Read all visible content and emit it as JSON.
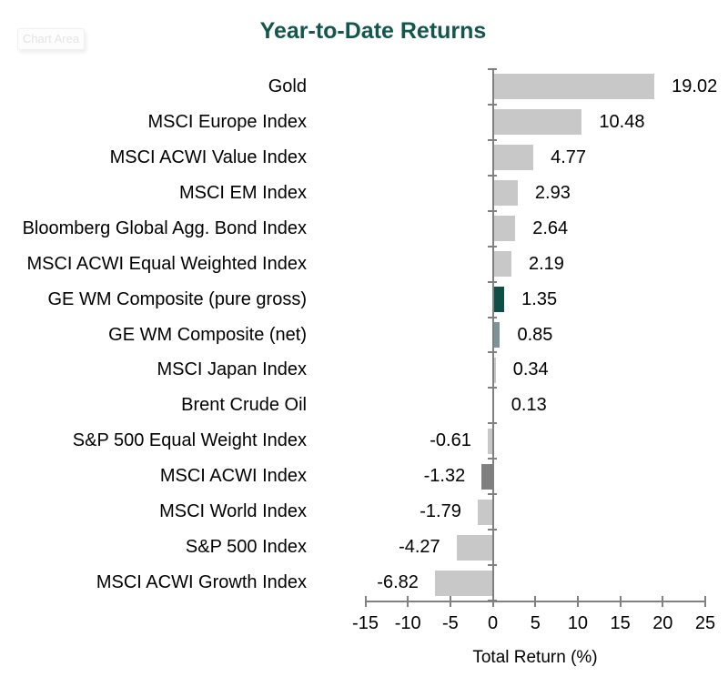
{
  "chart_area_tooltip": "Chart Area",
  "chart_data": {
    "type": "bar",
    "orientation": "horizontal",
    "title": "Year-to-Date Returns",
    "xlabel": "Total Return (%)",
    "xlim": [
      -15,
      25
    ],
    "xticks": [
      -15,
      -10,
      -5,
      0,
      5,
      10,
      15,
      20,
      25
    ],
    "grid": false,
    "legend": false,
    "categories": [
      "Gold",
      "MSCI Europe Index",
      "MSCI ACWI Value Index",
      "MSCI EM Index",
      "Bloomberg Global Agg. Bond Index",
      "MSCI ACWI Equal Weighted Index",
      "GE WM Composite (pure gross)",
      "GE WM Composite (net)",
      "MSCI Japan Index",
      "Brent Crude Oil",
      "S&P 500 Equal Weight Index",
      "MSCI ACWI Index",
      "MSCI World Index",
      "S&P 500 Index",
      "MSCI ACWI Growth Index"
    ],
    "values": [
      19.02,
      10.48,
      4.77,
      2.93,
      2.64,
      2.19,
      1.35,
      0.85,
      0.34,
      0.13,
      -0.61,
      -1.32,
      -1.79,
      -4.27,
      -6.82
    ],
    "value_labels": [
      "19.02",
      "10.48",
      "4.77",
      "2.93",
      "2.64",
      "2.19",
      "1.35",
      "0.85",
      "0.34",
      "0.13",
      "-0.61",
      "-1.32",
      "-1.79",
      "-4.27",
      "-6.82"
    ],
    "bar_colors": [
      "#c8c8c8",
      "#c8c8c8",
      "#c8c8c8",
      "#c8c8c8",
      "#c8c8c8",
      "#c8c8c8",
      "#0d4f48",
      "#7d9397",
      "#c8c8c8",
      "#c8c8c8",
      "#c8c8c8",
      "#7f7f7f",
      "#c8c8c8",
      "#c8c8c8",
      "#c8c8c8"
    ],
    "colors": {
      "default_bar": "#c8c8c8",
      "highlight_pure_gross": "#0d4f48",
      "highlight_net": "#7d9397",
      "highlight_msci_acwi": "#7f7f7f",
      "title_text": "#12564e",
      "axis_line": "#808080",
      "label_text": "#000000"
    }
  }
}
